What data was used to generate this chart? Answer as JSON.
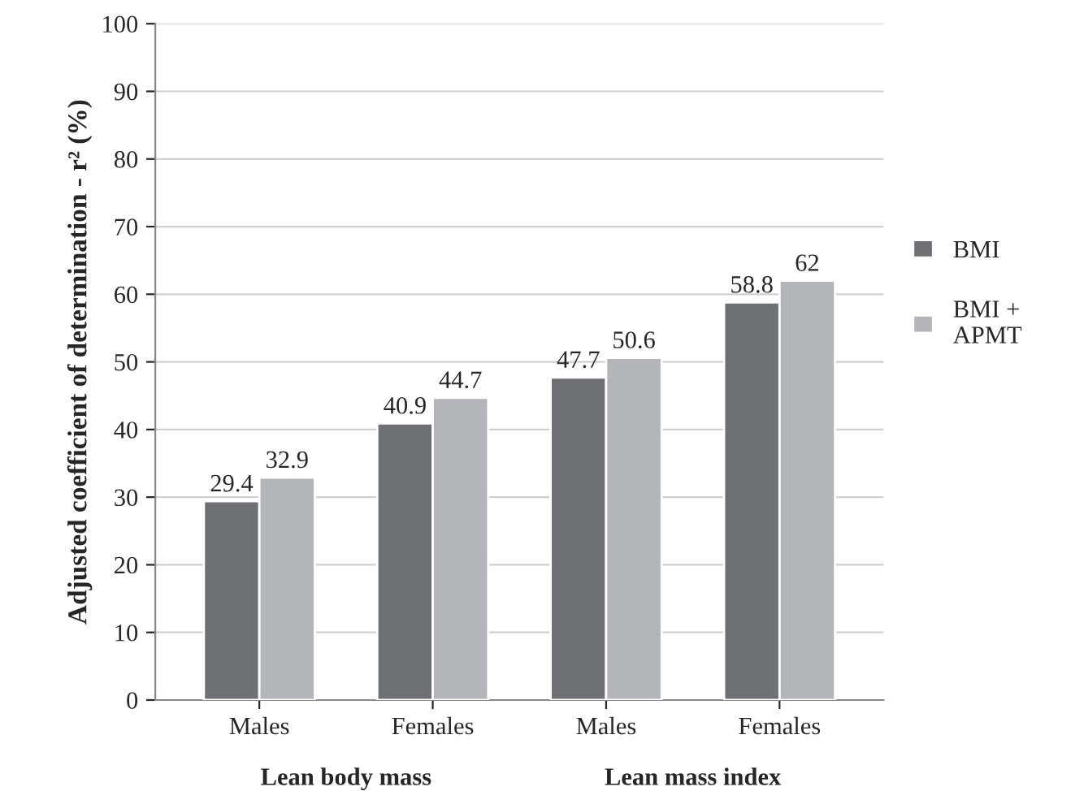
{
  "chart_data": {
    "type": "bar",
    "ylabel": "Adjusted coefficient of determination - r² (%)",
    "categories": [
      "Males",
      "Females",
      "Males",
      "Females"
    ],
    "series": [
      {
        "name": "BMI",
        "color": "#6f7073",
        "values": [
          29.4,
          40.9,
          47.7,
          58.8
        ]
      },
      {
        "name": "BMI +\nAPMT",
        "color": "#b4b5b8",
        "values": [
          32.9,
          44.7,
          50.6,
          62
        ]
      }
    ],
    "ylim": [
      0,
      100
    ],
    "yticks": [
      0,
      10,
      20,
      30,
      40,
      50,
      60,
      70,
      80,
      90,
      100
    ],
    "grid": "y",
    "legend": "right",
    "data_labels": true,
    "annotations": [
      "Lean body mass",
      "Lean mass index"
    ]
  }
}
